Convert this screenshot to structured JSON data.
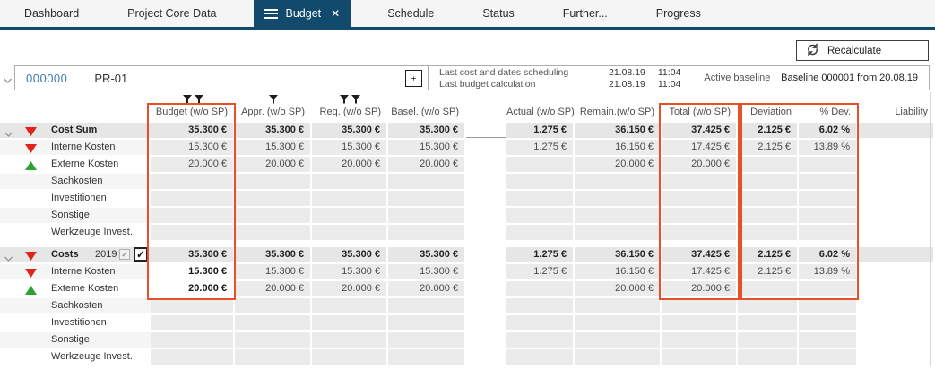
{
  "tabs": {
    "items": [
      {
        "label": "Dashboard",
        "active": false
      },
      {
        "label": "Project Core Data",
        "active": false
      },
      {
        "label": "Budget",
        "active": true
      },
      {
        "label": "Schedule",
        "active": false
      },
      {
        "label": "Status",
        "active": false
      },
      {
        "label": "Further...",
        "active": false
      },
      {
        "label": "Progress",
        "active": false
      }
    ]
  },
  "toolbar": {
    "recalculate_label": "Recalculate"
  },
  "project": {
    "id": "000000",
    "name": "PR-01",
    "info_rows": [
      {
        "label": "Last cost and dates scheduling",
        "date": "21.08.19",
        "time": "11:04"
      },
      {
        "label": "Last budget calculation",
        "date": "21.08.19",
        "time": "11:04"
      }
    ],
    "active_baseline_label": "Active baseline",
    "baseline_value": "Baseline 000001 from 20.08.19"
  },
  "table": {
    "columns": [
      {
        "key": "budget",
        "label": "Budget (w/o SP)",
        "filters": 2
      },
      {
        "key": "appr",
        "label": "Appr. (w/o SP)",
        "filters": 1
      },
      {
        "key": "req",
        "label": "Req. (w/o SP)",
        "filters": 2
      },
      {
        "key": "basel",
        "label": "Basel. (w/o SP)",
        "filters": 0
      },
      {
        "key": "gap",
        "label": "",
        "filters": 0,
        "spacer": true
      },
      {
        "key": "actual",
        "label": "Actual (w/o SP)",
        "filters": 0
      },
      {
        "key": "remain",
        "label": "Remain.(w/o SP)",
        "filters": 0
      },
      {
        "key": "total",
        "label": "Total (w/o SP)",
        "filters": 0
      },
      {
        "key": "deviation",
        "label": "Deviation",
        "filters": 0
      },
      {
        "key": "devpct",
        "label": "% Dev.",
        "filters": 0
      },
      {
        "key": "liability",
        "label": "Liability",
        "filters": 0
      }
    ],
    "sections": [
      {
        "header": {
          "label": "Cost Sum",
          "icon": "red-down",
          "values": {
            "budget": "35.300 €",
            "appr": "35.300 €",
            "req": "35.300 €",
            "basel": "35.300 €",
            "actual": "1.275 €",
            "remain": "36.150 €",
            "total": "37.425 €",
            "deviation": "2.125 €",
            "devpct": "6.02 %",
            "liability": ""
          }
        },
        "rows": [
          {
            "label": "Interne Kosten",
            "icon": "red-down",
            "values": {
              "budget": "15.300 €",
              "appr": "15.300 €",
              "req": "15.300 €",
              "basel": "15.300 €",
              "actual": "1.275 €",
              "remain": "16.150 €",
              "total": "17.425 €",
              "deviation": "2.125 €",
              "devpct": "13.89 %"
            }
          },
          {
            "label": "Externe Kosten",
            "icon": "green-up",
            "values": {
              "budget": "20.000 €",
              "appr": "20.000 €",
              "req": "20.000 €",
              "basel": "20.000 €",
              "remain": "20.000 €",
              "total": "20.000 €"
            }
          },
          {
            "label": "Sachkosten",
            "values": {}
          },
          {
            "label": "Investitionen",
            "values": {}
          },
          {
            "label": "Sonstige",
            "values": {}
          },
          {
            "label": "Werkzeuge Invest.",
            "values": {}
          }
        ]
      },
      {
        "header": {
          "label": "Costs",
          "year": "2019",
          "checkbox_small": true,
          "checkbox_large": true,
          "icon": "red-down",
          "values": {
            "budget": "35.300 €",
            "appr": "35.300 €",
            "req": "35.300 €",
            "basel": "35.300 €",
            "actual": "1.275 €",
            "remain": "36.150 €",
            "total": "37.425 €",
            "deviation": "2.125 €",
            "devpct": "6.02 %",
            "liability": ""
          }
        },
        "rows": [
          {
            "label": "Interne Kosten",
            "icon": "red-down",
            "editable_cols": [
              "budget"
            ],
            "values": {
              "budget": "15.300 €",
              "appr": "15.300 €",
              "req": "15.300 €",
              "basel": "15.300 €",
              "actual": "1.275 €",
              "remain": "16.150 €",
              "total": "17.425 €",
              "deviation": "2.125 €",
              "devpct": "13.89 %"
            }
          },
          {
            "label": "Externe Kosten",
            "icon": "green-up",
            "editable_cols": [
              "budget"
            ],
            "values": {
              "budget": "20.000 €",
              "appr": "20.000 €",
              "req": "20.000 €",
              "basel": "20.000 €",
              "remain": "20.000 €",
              "total": "20.000 €"
            }
          },
          {
            "label": "Sachkosten",
            "values": {}
          },
          {
            "label": "Investitionen",
            "values": {}
          },
          {
            "label": "Sonstige",
            "values": {}
          },
          {
            "label": "Werkzeuge Invest.",
            "values": {}
          }
        ]
      }
    ]
  },
  "colors": {
    "accent_navy": "#114a6d",
    "highlight_orange": "#e8502a",
    "red_indicator": "#e2231a",
    "green_indicator": "#2ca330",
    "project_id_blue": "#3d79b2"
  }
}
